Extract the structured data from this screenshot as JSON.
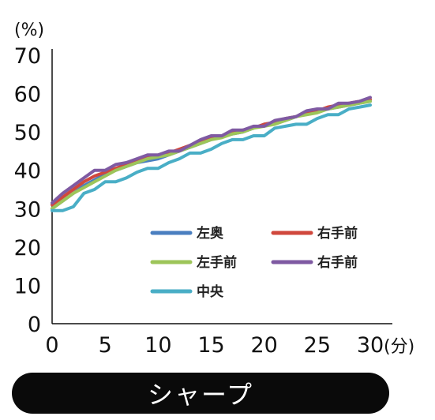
{
  "chart_data": {
    "type": "line",
    "y_unit_label": "(%)",
    "x_unit_label": "(分)",
    "xlim": [
      0,
      30
    ],
    "ylim": [
      0,
      70
    ],
    "x_ticks": [
      0,
      5,
      10,
      15,
      20,
      25,
      30
    ],
    "y_ticks": [
      0,
      10,
      20,
      30,
      40,
      50,
      60,
      70
    ],
    "grid": false,
    "legend_position": "lower-right",
    "x": [
      0,
      1,
      2,
      3,
      4,
      5,
      6,
      7,
      8,
      9,
      10,
      11,
      12,
      13,
      14,
      15,
      16,
      17,
      18,
      19,
      20,
      21,
      22,
      23,
      24,
      25,
      26,
      27,
      28,
      29,
      30
    ],
    "series": [
      {
        "name": "左奥",
        "color": "#4a7fc0",
        "values": [
          30,
          32,
          34,
          36,
          37.5,
          39,
          40,
          41,
          42,
          42.5,
          43,
          44,
          45,
          46,
          47,
          48,
          49,
          49.5,
          50,
          51,
          52,
          52.5,
          53,
          54,
          55,
          55.5,
          56,
          56.5,
          57,
          57.5,
          58
        ]
      },
      {
        "name": "右手前",
        "color": "#d0483d",
        "values": [
          31,
          33,
          35,
          37,
          38.5,
          39.5,
          40.5,
          41.5,
          42.5,
          43.5,
          44,
          44.5,
          45.5,
          46.5,
          47.5,
          48.5,
          49,
          50,
          50.5,
          51,
          52,
          52.5,
          53.5,
          54,
          55,
          55.5,
          56.5,
          57,
          57.5,
          58,
          58.5
        ]
      },
      {
        "name": "左手前",
        "color": "#9dc55a",
        "values": [
          30,
          32,
          34,
          35.5,
          37,
          38.5,
          40,
          41,
          42,
          43,
          43.5,
          44,
          45,
          46,
          47,
          48,
          48.5,
          49.5,
          50,
          51,
          51.5,
          52,
          53,
          54,
          54.5,
          55,
          56,
          56.5,
          57,
          57.5,
          58
        ]
      },
      {
        "name": "右手前",
        "color": "#7f5aa2",
        "values": [
          31.5,
          34,
          36,
          38,
          40,
          40,
          41.5,
          42,
          43,
          44,
          44,
          45,
          45,
          46.5,
          48,
          49,
          49,
          50.5,
          50.5,
          51.5,
          51.5,
          53,
          53.5,
          54,
          55.5,
          56,
          56,
          57.5,
          57.5,
          58,
          59
        ]
      },
      {
        "name": "中央",
        "color": "#49aec6",
        "values": [
          29.5,
          29.5,
          30.5,
          34,
          35,
          37,
          37,
          38,
          39.5,
          40.5,
          40.5,
          42,
          43,
          44.5,
          44.5,
          45.5,
          47,
          48,
          48,
          49,
          49,
          51,
          51.5,
          52,
          52,
          53.5,
          54.5,
          54.5,
          56,
          56.5,
          57
        ]
      }
    ]
  },
  "footer": {
    "label": "シャープ"
  }
}
